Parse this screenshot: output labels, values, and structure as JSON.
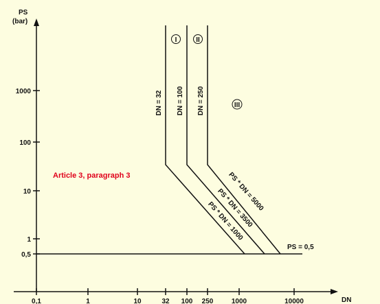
{
  "chart_data": {
    "type": "line",
    "y_axis": {
      "title_line1": "PS",
      "title_line2": "(bar)",
      "scale": "log",
      "range": [
        0.1,
        30000
      ],
      "ticks": [
        {
          "value": 0.5,
          "label": "0,5"
        },
        {
          "value": 1,
          "label": "1"
        },
        {
          "value": 10,
          "label": "10"
        },
        {
          "value": 100,
          "label": "100"
        },
        {
          "value": 1000,
          "label": "1000"
        }
      ]
    },
    "x_axis": {
      "title": "DN",
      "scale": "log",
      "range": [
        0.1,
        30000
      ],
      "ticks": [
        {
          "value": 0.1,
          "label": "0,1"
        },
        {
          "value": 1,
          "label": "1"
        },
        {
          "value": 10,
          "label": "10"
        },
        {
          "value": 32,
          "label": "32"
        },
        {
          "value": 100,
          "label": "100"
        },
        {
          "value": 250,
          "label": "250"
        },
        {
          "value": 1000,
          "label": "1000"
        },
        {
          "value": 10000,
          "label": "10000"
        }
      ]
    },
    "series": [
      {
        "name": "DN = 32",
        "points": [
          [
            32,
            25000
          ],
          [
            32,
            31.25
          ],
          [
            2000,
            0.5
          ]
        ]
      },
      {
        "name": "DN = 100",
        "points": [
          [
            100,
            25000
          ],
          [
            100,
            35
          ],
          [
            7000,
            0.5
          ]
        ]
      },
      {
        "name": "DN = 250",
        "points": [
          [
            250,
            25000
          ],
          [
            250,
            20
          ],
          [
            10000,
            0.5
          ]
        ]
      },
      {
        "name": "PS = 0,5",
        "points": [
          [
            0.1,
            0.5
          ],
          [
            20000,
            0.5
          ]
        ]
      }
    ],
    "line_labels": {
      "dn32": "DN = 32",
      "dn100": "DN = 100",
      "dn250": "DN = 250",
      "ps1000": "PS * DN = 1000",
      "ps3500": "PS * DN = 3500",
      "ps5000": "PS * DN = 5000",
      "ps05": "PS = 0,5"
    },
    "zones": [
      "I",
      "II",
      "III"
    ],
    "annotation": {
      "text": "Article 3, paragraph 3",
      "color": "#E0001B"
    },
    "grid": false
  }
}
